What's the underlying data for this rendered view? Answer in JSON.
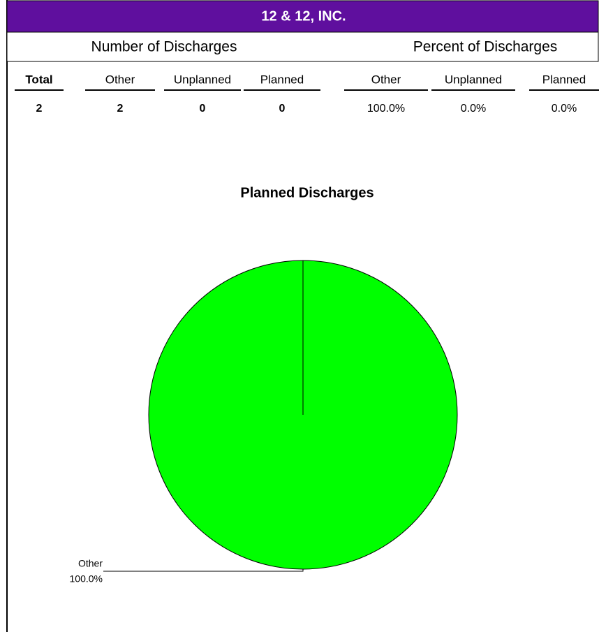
{
  "header": {
    "title": "12 & 12, INC."
  },
  "table": {
    "groups": [
      "Number of Discharges",
      "Percent of Discharges"
    ],
    "columns": [
      "Total",
      "Other",
      "Unplanned",
      "Planned",
      "Other",
      "Unplanned",
      "Planned"
    ],
    "rows": [
      [
        "2",
        "2",
        "0",
        "0",
        "100.0%",
        "0.0%",
        "0.0%"
      ]
    ]
  },
  "chart_data": {
    "type": "pie",
    "title": "Planned Discharges",
    "categories": [
      "Other"
    ],
    "values": [
      100
    ],
    "value_labels": [
      "100.0%"
    ],
    "colors": [
      "#00ff00"
    ]
  }
}
